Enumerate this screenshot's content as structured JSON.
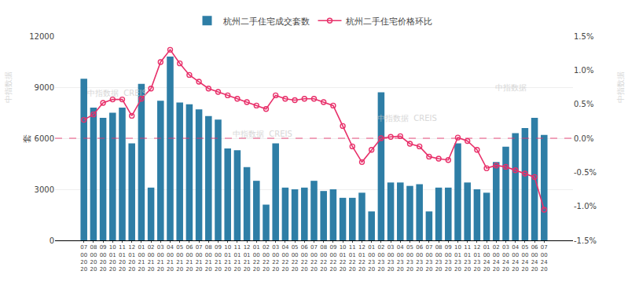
{
  "chart_data": {
    "type": "bar_line",
    "categories": [
      "07\n00\n20\n20",
      "08\n00\n20\n20",
      "09\n00\n20\n20",
      "10\n01\n20\n20",
      "11\n01\n20\n20",
      "12\n01\n20\n20",
      "01\n00\n21\n20",
      "02\n00\n21\n20",
      "03\n00\n21\n20",
      "04\n00\n21\n20",
      "05\n00\n21\n20",
      "06\n00\n21\n20",
      "07\n00\n21\n20",
      "08\n00\n21\n20",
      "09\n00\n21\n20",
      "10\n01\n21\n20",
      "11\n01\n21\n20",
      "12\n01\n21\n20",
      "01\n00\n22\n20",
      "02\n00\n22\n20",
      "03\n00\n22\n20",
      "04\n00\n22\n20",
      "05\n00\n22\n20",
      "06\n00\n22\n20",
      "07\n00\n22\n20",
      "08\n00\n22\n20",
      "09\n00\n22\n20",
      "10\n01\n22\n20",
      "11\n01\n22\n20",
      "12\n01\n22\n20",
      "01\n00\n23\n20",
      "02\n00\n23\n20",
      "03\n00\n23\n20",
      "04\n00\n23\n20",
      "05\n00\n23\n20",
      "06\n00\n23\n20",
      "07\n00\n23\n20",
      "08\n00\n23\n20",
      "09\n00\n23\n20",
      "10\n01\n23\n20",
      "11\n01\n23\n20",
      "12\n01\n23\n20",
      "01\n00\n24\n20",
      "02\n00\n24\n20",
      "03\n00\n24\n20",
      "04\n00\n24\n20",
      "05\n00\n24\n20",
      "06\n00\n24\n20",
      "07\n00\n24\n20"
    ],
    "series": [
      {
        "name": "杭州二手住宅成交套数",
        "type": "bar",
        "color": "#2e7ea6",
        "values": [
          9500,
          7800,
          7200,
          7500,
          7800,
          5700,
          9200,
          3100,
          8200,
          10800,
          8100,
          8000,
          7700,
          7300,
          7100,
          5400,
          5300,
          4300,
          3500,
          2100,
          5700,
          3100,
          3000,
          3100,
          3500,
          2900,
          3000,
          2500,
          2500,
          2800,
          1700,
          8700,
          3400,
          3400,
          3200,
          3300,
          1700,
          3100,
          3100,
          5700,
          3400,
          3000,
          2800,
          4600,
          5500,
          6300,
          6600,
          7200,
          6200
        ]
      },
      {
        "name": "杭州二手住宅价格环比",
        "type": "line",
        "color": "#e8306a",
        "axis": "y2",
        "marker": "circle",
        "values": [
          0.27,
          0.35,
          0.52,
          0.57,
          0.57,
          0.33,
          0.58,
          0.73,
          1.12,
          1.3,
          1.1,
          0.93,
          0.83,
          0.73,
          0.68,
          0.63,
          0.58,
          0.53,
          0.48,
          0.43,
          0.63,
          0.58,
          0.56,
          0.58,
          0.58,
          0.53,
          0.48,
          0.18,
          -0.12,
          -0.35,
          -0.17,
          0.0,
          0.02,
          0.03,
          -0.08,
          -0.12,
          -0.27,
          -0.3,
          -0.32,
          0.01,
          -0.04,
          -0.17,
          -0.44,
          -0.4,
          -0.42,
          -0.47,
          -0.52,
          -0.57,
          -1.05
        ]
      }
    ],
    "ylabel": "套",
    "ylim": [
      0,
      12000
    ],
    "yticks": [
      0,
      3000,
      6000,
      9000,
      12000
    ],
    "y2lim": [
      -1.5,
      1.5
    ],
    "y2ticks": [
      {
        "value": -1.5,
        "label": "-1.5%"
      },
      {
        "value": -1.0,
        "label": "-1.0%"
      },
      {
        "value": -0.5,
        "label": "-0.5%"
      },
      {
        "value": 0.0,
        "label": "0.0%"
      },
      {
        "value": 0.5,
        "label": "0.5%"
      },
      {
        "value": 1.0,
        "label": "1.0%"
      },
      {
        "value": 1.5,
        "label": "1.5%"
      }
    ],
    "hlines": [
      {
        "axis": "y2",
        "value": 0.0,
        "color": "#e8306a",
        "line_style": "dashed"
      }
    ],
    "grid": true,
    "legend": "top",
    "annotations": [
      "中指数据  CREIS",
      "中指数据  CREIS",
      "中指数据  CREIS",
      "中指数据",
      "中指数据",
      "中指数据"
    ]
  }
}
